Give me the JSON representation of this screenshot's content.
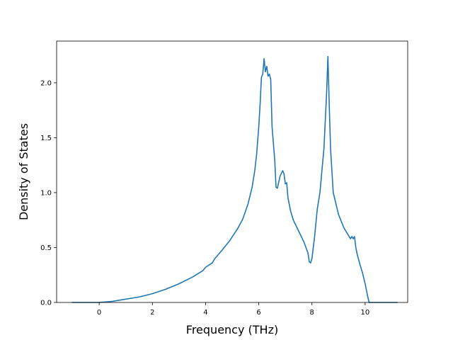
{
  "chart_data": {
    "type": "line",
    "title": "",
    "xlabel": "Frequency (THz)",
    "ylabel": "Density of States",
    "xlim": [
      -1.6,
      11.6
    ],
    "ylim": [
      0.0,
      2.38
    ],
    "xticks": [
      0,
      2,
      4,
      6,
      8,
      10
    ],
    "yticks": [
      0.0,
      0.5,
      1.0,
      1.5,
      2.0
    ],
    "xtick_labels": [
      "0",
      "2",
      "4",
      "6",
      "8",
      "10"
    ],
    "ytick_labels": [
      "0.0",
      "0.5",
      "1.0",
      "1.5",
      "2.0"
    ],
    "grid": false,
    "legend": "none",
    "colors": {
      "line": "#1f77b4",
      "axes": "#000000",
      "background": "#ffffff"
    },
    "series": [
      {
        "x": [
          -1.03,
          -0.5,
          0.0,
          0.5,
          1.0,
          1.5,
          2.0,
          2.5,
          3.0,
          3.5,
          3.9,
          4.0,
          4.25,
          4.35,
          4.6,
          4.9,
          5.2,
          5.4,
          5.6,
          5.75,
          5.85,
          5.92,
          6.0,
          6.05,
          6.1,
          6.15,
          6.2,
          6.25,
          6.3,
          6.35,
          6.4,
          6.45,
          6.5,
          6.6,
          6.65,
          6.7,
          6.8,
          6.9,
          6.95,
          7.0,
          7.05,
          7.1,
          7.2,
          7.3,
          7.5,
          7.7,
          7.85,
          7.9,
          7.95,
          8.0,
          8.1,
          8.2,
          8.3,
          8.45,
          8.55,
          8.6,
          8.65,
          8.7,
          8.75,
          8.8,
          8.95,
          9.0,
          9.2,
          9.45,
          9.5,
          9.55,
          9.6,
          9.65,
          9.7,
          9.8,
          9.9,
          10.0,
          10.1,
          10.15,
          10.5,
          10.9,
          11.22
        ],
        "values": [
          0.0,
          0.0,
          0.0,
          0.01,
          0.03,
          0.05,
          0.08,
          0.12,
          0.17,
          0.23,
          0.29,
          0.32,
          0.36,
          0.4,
          0.47,
          0.56,
          0.67,
          0.76,
          0.9,
          1.05,
          1.2,
          1.35,
          1.6,
          1.8,
          2.05,
          2.08,
          2.22,
          2.1,
          2.15,
          2.06,
          2.08,
          2.03,
          1.6,
          1.3,
          1.05,
          1.04,
          1.15,
          1.2,
          1.17,
          1.08,
          1.09,
          0.95,
          0.83,
          0.75,
          0.65,
          0.55,
          0.45,
          0.37,
          0.36,
          0.4,
          0.6,
          0.85,
          1.0,
          1.4,
          1.9,
          2.24,
          1.8,
          1.4,
          1.2,
          1.0,
          0.85,
          0.8,
          0.68,
          0.58,
          0.6,
          0.58,
          0.6,
          0.5,
          0.44,
          0.35,
          0.27,
          0.17,
          0.05,
          0.0,
          0.0,
          0.0,
          0.0
        ]
      }
    ]
  }
}
